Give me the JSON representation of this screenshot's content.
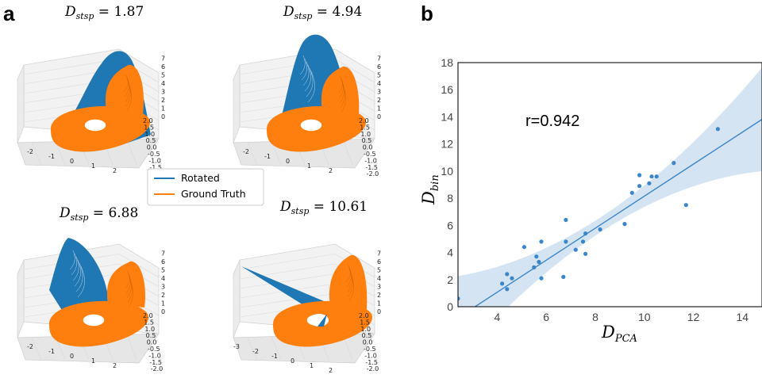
{
  "panel_a": {
    "letter": "a",
    "subplots": [
      {
        "title_base": "D",
        "title_sub": "stsp",
        "title_rest": " = 1.87",
        "value": 1.87,
        "rotated_shape": "wing"
      },
      {
        "title_base": "D",
        "title_sub": "stsp",
        "title_rest": " = 4.94",
        "value": 4.94,
        "rotated_shape": "wing-tall"
      },
      {
        "title_base": "D",
        "title_sub": "stsp",
        "title_rest": " = 6.88",
        "value": 6.88,
        "rotated_shape": "wing-left"
      },
      {
        "title_base": "D",
        "title_sub": "stsp",
        "title_rest": " = 10.61",
        "value": 10.61,
        "rotated_shape": "spike"
      }
    ],
    "z_ticks": [
      "0",
      "1",
      "2",
      "3",
      "4",
      "5",
      "6",
      "7"
    ],
    "y_ticks": [
      "2.0",
      "1.5",
      "1.0",
      "0.5",
      "0.0",
      "-0.5",
      "-1.0",
      "-1.5",
      "-2.0"
    ],
    "x_ticks": [
      "-2",
      "-1",
      "0",
      "1",
      "2"
    ],
    "x_ticks_wide": [
      "-3",
      "-2",
      "-1",
      "0",
      "1",
      "2"
    ],
    "legend": [
      {
        "label": "Rotated",
        "color": "#1f77b4"
      },
      {
        "label": "Ground Truth",
        "color": "#ff7f0e"
      }
    ]
  },
  "panel_b": {
    "letter": "b"
  },
  "chart_data": {
    "type": "scatter",
    "xlabel_base": "D",
    "xlabel_sub": "PCA",
    "ylabel_base": "D",
    "ylabel_sub": "bin",
    "xlim": [
      2.4,
      14.8
    ],
    "ylim": [
      0,
      18
    ],
    "x_ticks": [
      4,
      6,
      8,
      10,
      12,
      14
    ],
    "y_ticks": [
      0,
      2,
      4,
      6,
      8,
      10,
      12,
      14,
      16,
      18
    ],
    "annotation": "r=0.942",
    "regression": {
      "slope": 1.18,
      "intercept": -3.65
    },
    "confidence_band": "shaded",
    "grid": false,
    "color": "#3a86c8",
    "points": [
      {
        "x": 2.4,
        "y": 0.6
      },
      {
        "x": 4.2,
        "y": 1.7
      },
      {
        "x": 4.4,
        "y": 2.4
      },
      {
        "x": 4.4,
        "y": 1.3
      },
      {
        "x": 4.6,
        "y": 2.1
      },
      {
        "x": 5.1,
        "y": 4.4
      },
      {
        "x": 5.5,
        "y": 2.9
      },
      {
        "x": 5.6,
        "y": 3.7
      },
      {
        "x": 5.7,
        "y": 3.3
      },
      {
        "x": 5.8,
        "y": 4.8
      },
      {
        "x": 5.8,
        "y": 2.1
      },
      {
        "x": 6.7,
        "y": 2.2
      },
      {
        "x": 6.8,
        "y": 6.4
      },
      {
        "x": 6.8,
        "y": 4.8
      },
      {
        "x": 7.2,
        "y": 4.2
      },
      {
        "x": 7.5,
        "y": 4.8
      },
      {
        "x": 7.6,
        "y": 5.4
      },
      {
        "x": 7.6,
        "y": 3.9
      },
      {
        "x": 8.2,
        "y": 5.7
      },
      {
        "x": 9.2,
        "y": 6.1
      },
      {
        "x": 9.5,
        "y": 8.4
      },
      {
        "x": 9.8,
        "y": 9.7
      },
      {
        "x": 9.8,
        "y": 8.9
      },
      {
        "x": 10.2,
        "y": 9.1
      },
      {
        "x": 10.3,
        "y": 9.6
      },
      {
        "x": 10.5,
        "y": 9.6
      },
      {
        "x": 11.2,
        "y": 10.6
      },
      {
        "x": 11.7,
        "y": 7.5
      },
      {
        "x": 13.0,
        "y": 13.1
      }
    ]
  }
}
